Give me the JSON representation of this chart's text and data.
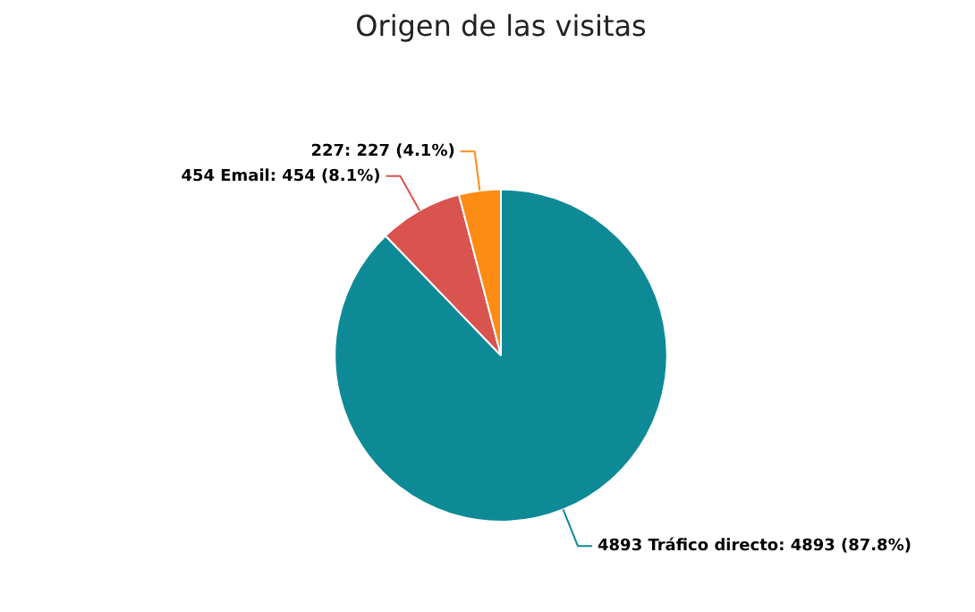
{
  "chart_data": {
    "type": "pie",
    "title": "Origen de las visitas",
    "categories": [
      "4893 Tráfico directo",
      "454 Email",
      "227"
    ],
    "values": [
      4893,
      454,
      227
    ],
    "colors": [
      "#0e8a96",
      "#d9534f",
      "#fd8c14"
    ],
    "value_labels": [
      "4893 (87.8%)",
      "454 (8.1%)",
      "227 (4.1%)"
    ],
    "legend": false
  }
}
